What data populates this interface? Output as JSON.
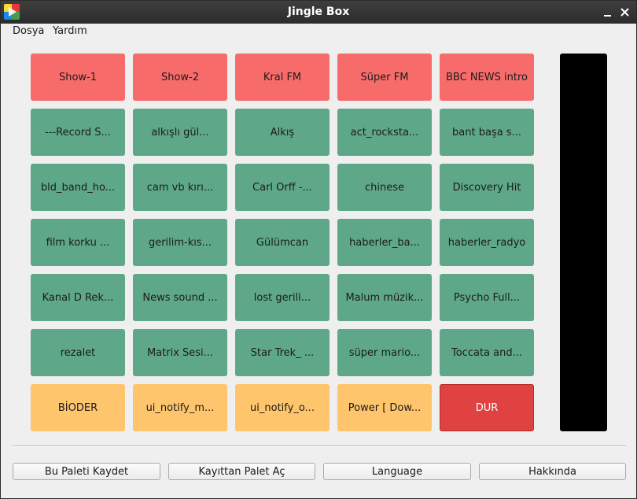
{
  "window": {
    "title": "Jingle Box"
  },
  "menu": [
    "Dosya",
    "Yardım"
  ],
  "pads": [
    {
      "label": "Show-1",
      "color": "red"
    },
    {
      "label": "Show-2",
      "color": "red"
    },
    {
      "label": "Kral FM",
      "color": "red"
    },
    {
      "label": "Süper FM",
      "color": "red"
    },
    {
      "label": "BBC NEWS intro",
      "color": "red"
    },
    {
      "label": "---Record S...",
      "color": "green"
    },
    {
      "label": "alkışlı gül...",
      "color": "green"
    },
    {
      "label": "Alkış",
      "color": "green"
    },
    {
      "label": "act_rocksta...",
      "color": "green"
    },
    {
      "label": "bant başa s...",
      "color": "green"
    },
    {
      "label": "bld_band_ho...",
      "color": "green"
    },
    {
      "label": "cam vb kırı...",
      "color": "green"
    },
    {
      "label": "Carl Orff -...",
      "color": "green"
    },
    {
      "label": "chinese",
      "color": "green"
    },
    {
      "label": "Discovery Hit",
      "color": "green"
    },
    {
      "label": "film korku ...",
      "color": "green"
    },
    {
      "label": "gerilim-kıs...",
      "color": "green"
    },
    {
      "label": "Gülümcan",
      "color": "green"
    },
    {
      "label": "haberler_ba...",
      "color": "green"
    },
    {
      "label": "haberler_radyo",
      "color": "green"
    },
    {
      "label": "Kanal D Rek...",
      "color": "green"
    },
    {
      "label": "News sound ...",
      "color": "green"
    },
    {
      "label": "lost gerili...",
      "color": "green"
    },
    {
      "label": "Malum müzik...",
      "color": "green"
    },
    {
      "label": "Psycho Full...",
      "color": "green"
    },
    {
      "label": "rezalet",
      "color": "green"
    },
    {
      "label": "Matrix Sesi...",
      "color": "green"
    },
    {
      "label": "Star Trek_ ...",
      "color": "green"
    },
    {
      "label": "süper mario...",
      "color": "green"
    },
    {
      "label": "Toccata and...",
      "color": "green"
    },
    {
      "label": "BİODER",
      "color": "orange"
    },
    {
      "label": "ui_notify_m...",
      "color": "orange"
    },
    {
      "label": "ui_notify_o...",
      "color": "orange"
    },
    {
      "label": "Power [ Dow...",
      "color": "orange"
    },
    {
      "label": "DUR",
      "color": "stop"
    }
  ],
  "buttons": [
    "Bu Paleti Kaydet",
    "Kayıttan Palet Aç",
    "Language",
    "Hakkında"
  ],
  "colors": {
    "red": "#f86b6b",
    "green": "#5ea889",
    "orange": "#fec56c",
    "stop": "#e04242",
    "meter": "#000000"
  }
}
